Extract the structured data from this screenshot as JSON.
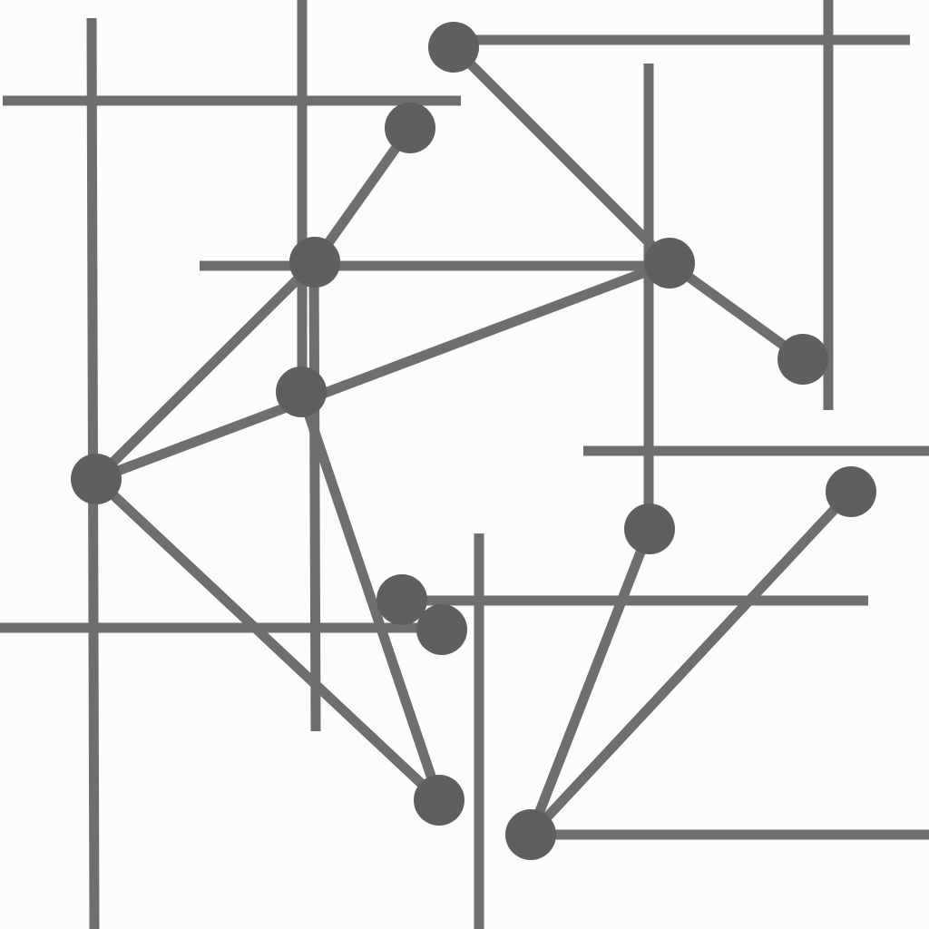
{
  "colors": {
    "background": "#fcfcfc",
    "stroke": "#6e6e6e",
    "node": "#5f5f5f"
  },
  "nodes": [
    {
      "id": "n1"
    },
    {
      "id": "n2"
    },
    {
      "id": "n3"
    },
    {
      "id": "n4"
    },
    {
      "id": "n5"
    },
    {
      "id": "n6"
    },
    {
      "id": "n7"
    },
    {
      "id": "n8"
    },
    {
      "id": "n9"
    },
    {
      "id": "n10"
    },
    {
      "id": "n11"
    },
    {
      "id": "n12"
    },
    {
      "id": "n13"
    },
    {
      "id": "n14"
    }
  ],
  "edges": [
    {
      "from": "n1",
      "to": "n2"
    },
    {
      "from": "n2",
      "to": "n3"
    },
    {
      "from": "n3",
      "to": "n4"
    },
    {
      "from": "n5",
      "to": "n6"
    },
    {
      "from": "n6",
      "to": "n7"
    },
    {
      "from": "n3",
      "to": "n6"
    },
    {
      "from": "n4",
      "to": "n8"
    },
    {
      "from": "n9",
      "to": "n10"
    },
    {
      "from": "n11",
      "to": "n12"
    },
    {
      "from": "n12",
      "to": "n13"
    }
  ]
}
